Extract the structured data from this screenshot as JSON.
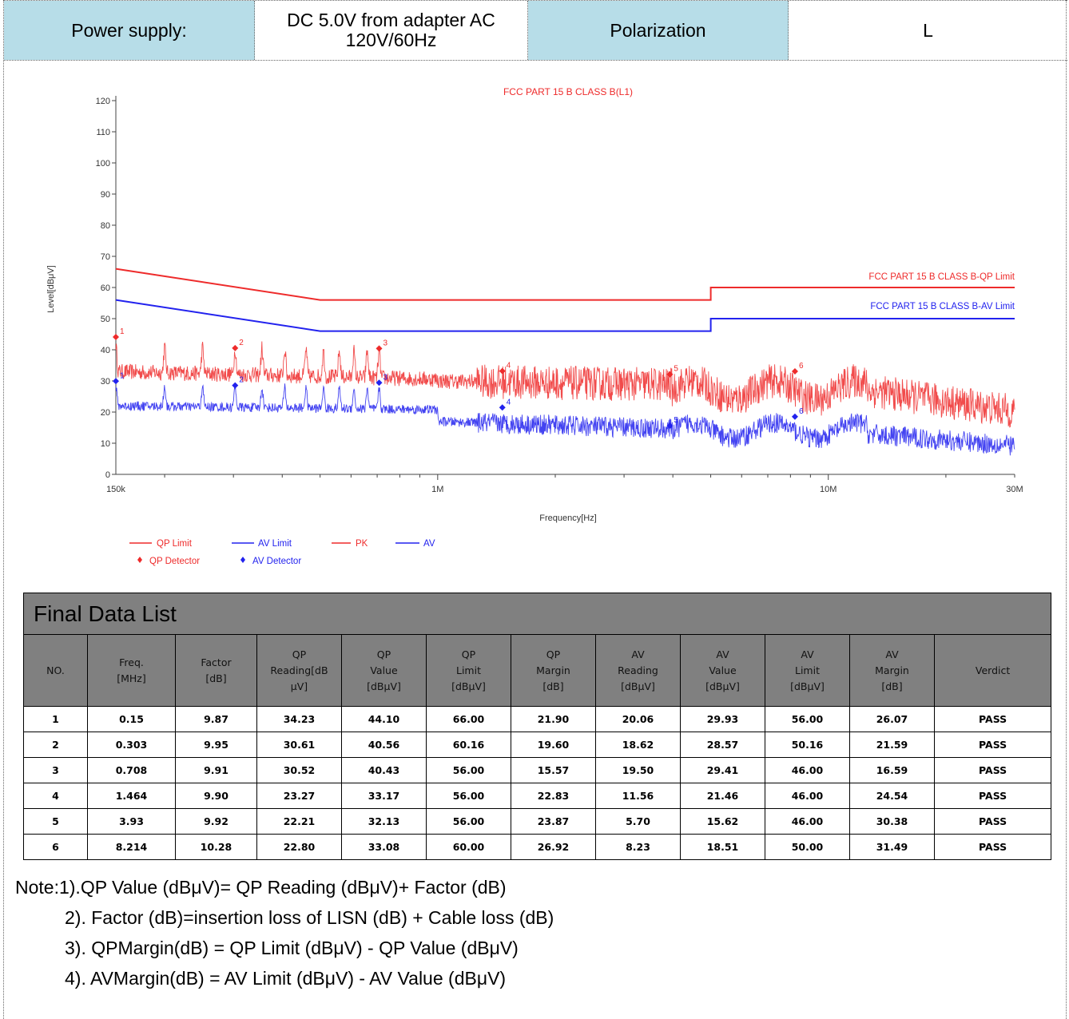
{
  "header": {
    "power_supply_label": "Power supply:",
    "power_supply_value": "DC 5.0V from adapter AC 120V/60Hz",
    "polarization_label": "Polarization",
    "polarization_value": "L"
  },
  "colors": {
    "qp": "#ee2b2b",
    "av": "#2222ee",
    "header_fill": "#b7dde8",
    "table_fill": "#808080"
  },
  "chart_data": {
    "type": "line",
    "title": "FCC PART 15 B CLASS B(L1)",
    "xlabel": "Frequency[Hz]",
    "ylabel": "Level[dBμV]",
    "x_scale": "log",
    "xlim": [
      150000,
      30000000
    ],
    "ylim": [
      0,
      120
    ],
    "y_ticks": [
      0,
      10,
      20,
      30,
      40,
      50,
      60,
      70,
      80,
      90,
      100,
      110,
      120
    ],
    "x_tick_labels": [
      {
        "value": 150000,
        "label": "150k"
      },
      {
        "value": 1000000,
        "label": "1M"
      },
      {
        "value": 10000000,
        "label": "10M"
      },
      {
        "value": 30000000,
        "label": "30M"
      }
    ],
    "limit_labels": {
      "qp": "FCC PART 15 B CLASS B-QP Limit",
      "av": "FCC PART 15 B CLASS B-AV Limit"
    },
    "series": [
      {
        "name": "QP Limit",
        "x": [
          150000,
          500000,
          500000,
          5000000,
          5000000,
          30000000
        ],
        "y": [
          66,
          56,
          56,
          56,
          60,
          60
        ]
      },
      {
        "name": "AV Limit",
        "x": [
          150000,
          500000,
          500000,
          5000000,
          5000000,
          30000000
        ],
        "y": [
          56,
          46,
          46,
          46,
          50,
          50
        ]
      },
      {
        "name": "PK"
      },
      {
        "name": "AV"
      }
    ],
    "qp_detector": {
      "name": "QP Detector",
      "x": [
        150000,
        303000,
        708000,
        1464000,
        3930000,
        8214000
      ],
      "y": [
        44.1,
        40.56,
        40.43,
        33.17,
        32.13,
        33.08
      ],
      "labels": [
        "1",
        "2",
        "3",
        "4",
        "5",
        "6"
      ]
    },
    "av_detector": {
      "name": "AV Detector",
      "x": [
        150000,
        303000,
        708000,
        1464000,
        3930000,
        8214000
      ],
      "y": [
        29.93,
        28.57,
        29.41,
        21.46,
        15.62,
        18.51
      ],
      "labels": [
        "1",
        "2",
        "3",
        "4",
        "5",
        "6"
      ]
    },
    "legend_placement": "bottom-left",
    "grid": false
  },
  "table": {
    "title": "Final Data List",
    "columns": [
      [
        "NO."
      ],
      [
        "Freq.",
        "[MHz]"
      ],
      [
        "Factor",
        "[dB]"
      ],
      [
        "QP",
        "Reading[dB",
        "μV]"
      ],
      [
        "QP",
        "Value",
        "[dBμV]"
      ],
      [
        "QP",
        "Limit",
        "[dBμV]"
      ],
      [
        "QP",
        "Margin",
        "[dB]"
      ],
      [
        "AV",
        "Reading",
        "[dBμV]"
      ],
      [
        "AV",
        "Value",
        "[dBμV]"
      ],
      [
        "AV",
        "Limit",
        "[dBμV]"
      ],
      [
        "AV",
        "Margin",
        "[dB]"
      ],
      [
        "Verdict"
      ]
    ],
    "rows": [
      [
        "1",
        "0.15",
        "9.87",
        "34.23",
        "44.10",
        "66.00",
        "21.90",
        "20.06",
        "29.93",
        "56.00",
        "26.07",
        "PASS"
      ],
      [
        "2",
        "0.303",
        "9.95",
        "30.61",
        "40.56",
        "60.16",
        "19.60",
        "18.62",
        "28.57",
        "50.16",
        "21.59",
        "PASS"
      ],
      [
        "3",
        "0.708",
        "9.91",
        "30.52",
        "40.43",
        "56.00",
        "15.57",
        "19.50",
        "29.41",
        "46.00",
        "16.59",
        "PASS"
      ],
      [
        "4",
        "1.464",
        "9.90",
        "23.27",
        "33.17",
        "56.00",
        "22.83",
        "11.56",
        "21.46",
        "46.00",
        "24.54",
        "PASS"
      ],
      [
        "5",
        "3.93",
        "9.92",
        "22.21",
        "32.13",
        "56.00",
        "23.87",
        "5.70",
        "15.62",
        "46.00",
        "30.38",
        "PASS"
      ],
      [
        "6",
        "8.214",
        "10.28",
        "22.80",
        "33.08",
        "60.00",
        "26.92",
        "8.23",
        "18.51",
        "50.00",
        "31.49",
        "PASS"
      ]
    ]
  },
  "notes": [
    "Note:1).QP Value (dBμV)= QP Reading (dBμV)+ Factor (dB)",
    "2). Factor (dB)=insertion loss of LISN (dB) + Cable loss (dB)",
    "3). QPMargin(dB) = QP Limit (dBμV) - QP Value (dBμV)",
    "4). AVMargin(dB) = AV Limit (dBμV) - AV Value (dBμV)"
  ]
}
